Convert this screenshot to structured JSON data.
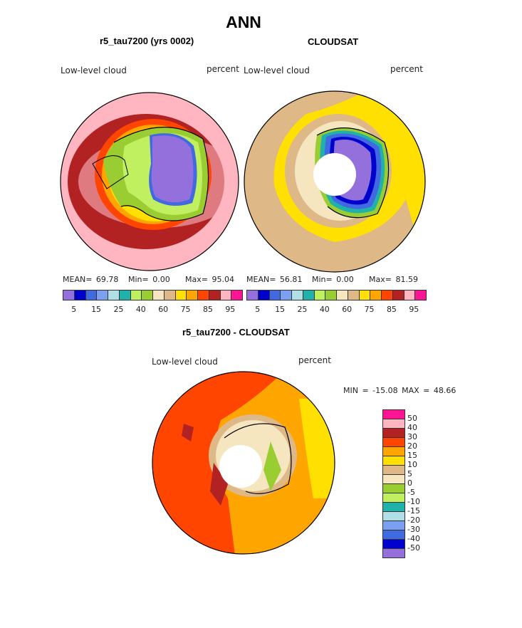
{
  "title": "ANN",
  "panels": [
    {
      "title": "r5_tau7200 (yrs 0002)",
      "left_label": "Low-level cloud",
      "right_label": "percent",
      "mean": "MEAN=  69.78",
      "min": "Min=   0.00",
      "max": "Max=  95.04"
    },
    {
      "title": "CLOUDSAT",
      "left_label": "Low-level cloud",
      "right_label": "percent",
      "mean": "MEAN=  56.81",
      "min": "Min=   0.00",
      "max": "Max=  81.59"
    },
    {
      "title": "r5_tau7200 - CLOUDSAT",
      "left_label": "Low-level cloud",
      "right_label": "percent",
      "minmax": "MIN = -15.08  MAX =   48.66"
    }
  ],
  "colorbar_colors": [
    "#9370DB",
    "#0000CD",
    "#4169E1",
    "#7BA0F0",
    "#B0E0E6",
    "#20B2AA",
    "#C0F060",
    "#9ACD32",
    "#F5E6C0",
    "#DEB887",
    "#FFE000",
    "#FFA500",
    "#FF4500",
    "#B22222",
    "#FFB6C1",
    "#FF1493"
  ],
  "colorbar_ticks": [
    "5",
    "15",
    "25",
    "40",
    "60",
    "75",
    "85",
    "95"
  ],
  "diff_colorbar_ticks": [
    "50",
    "40",
    "30",
    "20",
    "15",
    "10",
    "5",
    "0",
    "-5",
    "-10",
    "-15",
    "-20",
    "-30",
    "-40",
    "-50"
  ]
}
